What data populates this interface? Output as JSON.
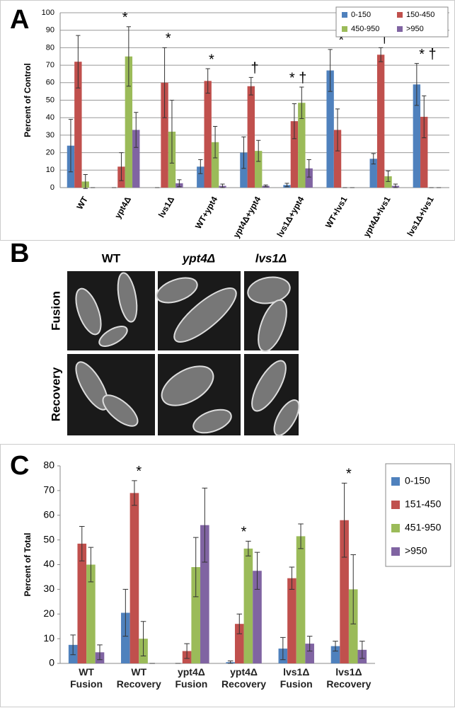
{
  "chart_data": [
    {
      "type": "bar",
      "panel": "A",
      "y_label": "Percent of Control",
      "categories": [
        "WT",
        "ypt4Δ",
        "lvs1Δ",
        "WT+ypt4",
        "ypt4Δ+ypt4",
        "lvs1Δ+ypt4",
        "WT+lvs1",
        "ypt4Δ+lvs1",
        "lvs1Δ+lvs1"
      ],
      "series": [
        {
          "name": "0-150",
          "color": "#4f81bd",
          "values": [
            24,
            0,
            0,
            12,
            20,
            1.5,
            67,
            16.5,
            59
          ],
          "errors": [
            15,
            0,
            0,
            4,
            9,
            1,
            12,
            3,
            12
          ]
        },
        {
          "name": "150-450",
          "color": "#c0504d",
          "values": [
            72,
            12,
            60,
            61,
            58,
            38,
            33,
            76,
            40.5
          ],
          "errors": [
            15,
            8,
            20,
            7,
            5,
            10,
            12,
            4,
            12
          ]
        },
        {
          "name": "450-950",
          "color": "#9bbb59",
          "values": [
            3.5,
            75,
            32,
            26,
            21,
            48.5,
            0,
            6.5,
            0
          ],
          "errors": [
            4,
            17,
            18,
            9,
            6,
            9,
            0,
            3,
            0
          ]
        },
        {
          "name": ">950",
          "color": "#8064a2",
          "values": [
            0,
            33,
            2.5,
            1,
            1,
            11,
            0,
            1,
            0
          ],
          "errors": [
            0,
            10,
            2,
            1,
            0.5,
            5,
            0,
            1,
            0
          ]
        }
      ],
      "annotations": [
        {
          "category": "ypt4Δ",
          "text": "*"
        },
        {
          "category": "lvs1Δ",
          "text": "*"
        },
        {
          "category": "WT+ypt4",
          "text": "*"
        },
        {
          "category": "ypt4Δ+ypt4",
          "text": "†"
        },
        {
          "category": "lvs1Δ+ypt4",
          "text": "* †"
        },
        {
          "category": "WT+lvs1",
          "text": "*"
        },
        {
          "category": "ypt4Δ+lvs1",
          "text": "†"
        },
        {
          "category": "lvs1Δ+lvs1",
          "text": "* †"
        }
      ],
      "ylim": [
        0,
        100
      ],
      "yticks": [
        0,
        10,
        20,
        30,
        40,
        50,
        60,
        70,
        80,
        90,
        100
      ],
      "grid": true,
      "legend": "top-right"
    },
    {
      "type": "bar",
      "panel": "C",
      "y_label": "Percent of Total",
      "categories": [
        "WT\nFusion",
        "WT\nRecovery",
        "ypt4Δ\nFusion",
        "ypt4Δ\nRecovery",
        "lvs1Δ\nFusion",
        "lvs1Δ\nRecovery"
      ],
      "series": [
        {
          "name": "0-150",
          "color": "#4f81bd",
          "values": [
            7.5,
            20.5,
            0,
            0.5,
            6,
            7
          ],
          "errors": [
            4,
            9.5,
            0,
            0.5,
            4.5,
            2
          ]
        },
        {
          "name": "151-450",
          "color": "#c0504d",
          "values": [
            48.5,
            69,
            5,
            16,
            34.5,
            58
          ],
          "errors": [
            7,
            5,
            3,
            4,
            4.5,
            15
          ]
        },
        {
          "name": "451-950",
          "color": "#9bbb59",
          "values": [
            40,
            10,
            39,
            46.5,
            51.5,
            30
          ],
          "errors": [
            7,
            7,
            12,
            3,
            5,
            14
          ]
        },
        {
          "name": ">950",
          "color": "#8064a2",
          "values": [
            4.5,
            0,
            56,
            37.5,
            8,
            5.5
          ],
          "errors": [
            3,
            0,
            15,
            7.5,
            3,
            3.5
          ]
        }
      ],
      "annotations": [
        {
          "category": "WT\nRecovery",
          "text": "*"
        },
        {
          "category": "ypt4Δ\nRecovery",
          "text": "*"
        },
        {
          "category": "lvs1Δ\nRecovery",
          "text": "*"
        }
      ],
      "ylim": [
        0,
        80
      ],
      "yticks": [
        0,
        10,
        20,
        30,
        40,
        50,
        60,
        70,
        80
      ],
      "grid": false,
      "legend": "right"
    }
  ],
  "panel_b": {
    "letter": "B",
    "columns": [
      "WT",
      "ypt4Δ",
      "lvs1Δ"
    ],
    "rows": [
      "Fusion",
      "Recovery"
    ]
  }
}
